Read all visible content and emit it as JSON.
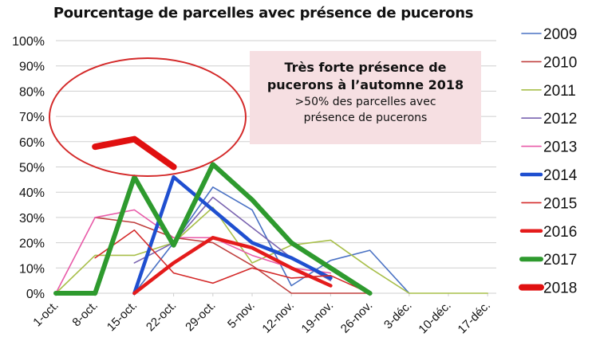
{
  "chart_data": {
    "type": "line",
    "title": "Pourcentage de parcelles avec présence de pucerons",
    "xlabel": "",
    "ylabel": "",
    "categories": [
      "1-oct.",
      "8-oct.",
      "15-oct.",
      "22-oct.",
      "29-oct.",
      "5-nov.",
      "12-nov.",
      "19-nov.",
      "26-nov.",
      "3-déc.",
      "10-déc.",
      "17-déc."
    ],
    "ylim": [
      0,
      100
    ],
    "yticks": [
      "0%",
      "10%",
      "20%",
      "30%",
      "40%",
      "50%",
      "60%",
      "70%",
      "80%",
      "90%",
      "100%"
    ],
    "grid": true,
    "legend_position": "right",
    "series": [
      {
        "name": "2009",
        "color": "#4a72c4",
        "weight": "thin",
        "values": [
          null,
          null,
          0,
          20,
          42,
          33,
          3,
          13,
          17,
          0,
          null,
          null
        ]
      },
      {
        "name": "2010",
        "color": "#c0403f",
        "weight": "thin",
        "values": [
          null,
          30,
          28,
          22,
          20,
          11,
          0,
          0,
          0,
          null,
          null,
          null
        ]
      },
      {
        "name": "2011",
        "color": "#a8bf4a",
        "weight": "thin",
        "values": [
          0,
          15,
          15,
          20,
          34,
          12,
          19,
          21,
          10,
          0,
          0,
          0
        ]
      },
      {
        "name": "2012",
        "color": "#7a64b0",
        "weight": "thin",
        "values": [
          null,
          null,
          12,
          20,
          38,
          26,
          14,
          5,
          null,
          null,
          null,
          null
        ]
      },
      {
        "name": "2013",
        "color": "#e85aa8",
        "weight": "thin",
        "values": [
          0,
          30,
          33,
          22,
          22,
          15,
          10,
          8,
          null,
          null,
          null,
          null
        ]
      },
      {
        "name": "2014",
        "color": "#1f4fd0",
        "weight": "thick",
        "values": [
          null,
          null,
          0,
          46,
          33,
          20,
          14,
          6,
          null,
          null,
          null,
          null
        ]
      },
      {
        "name": "2015",
        "color": "#d42a2a",
        "weight": "thin",
        "values": [
          null,
          14,
          25,
          8,
          4,
          10,
          6,
          7,
          0,
          null,
          null,
          null
        ]
      },
      {
        "name": "2016",
        "color": "#e41b1b",
        "weight": "thick",
        "values": [
          null,
          null,
          0,
          12,
          22,
          18,
          10,
          3,
          null,
          null,
          null,
          null
        ]
      },
      {
        "name": "2017",
        "color": "#2e9a2e",
        "weight": "thicker",
        "values": [
          0,
          0,
          46,
          19,
          51,
          37,
          20,
          10,
          0,
          null,
          null,
          null
        ]
      },
      {
        "name": "2018",
        "color": "#e01010",
        "weight": "thickest",
        "values": [
          null,
          58,
          61,
          50,
          null,
          null,
          null,
          null,
          null,
          null,
          null,
          null
        ]
      }
    ],
    "annotation": {
      "title_line1": "Très forte présence de",
      "title_line2": "pucerons à l’automne 2018",
      "body_line1": ">50% des parcelles avec",
      "body_line2": "présence de pucerons",
      "background": "#f6dfe2"
    },
    "highlight_ellipse_color": "#d42a2a"
  }
}
